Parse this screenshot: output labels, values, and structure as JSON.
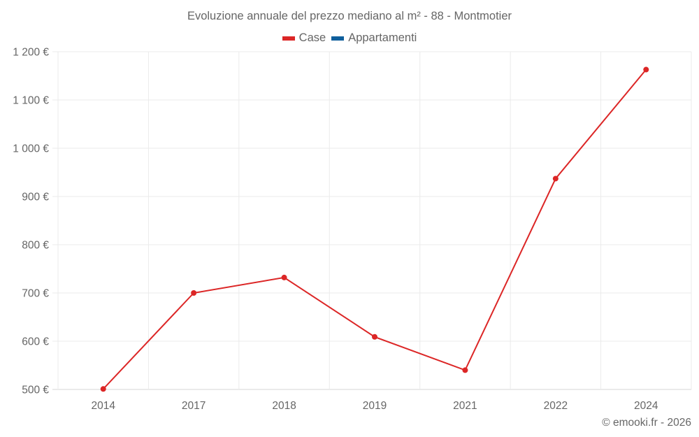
{
  "title": "Evoluzione annuale del prezzo mediano al m² - 88 - Montmotier",
  "legend": [
    {
      "label": "Case",
      "color": "#dc2626"
    },
    {
      "label": "Appartamenti",
      "color": "#0f5f9c"
    }
  ],
  "credit": "© emooki.fr - 2026",
  "chart_data": {
    "type": "line",
    "title": "Evoluzione annuale del prezzo mediano al m² - 88 - Montmotier",
    "xlabel": "",
    "ylabel": "",
    "categories": [
      "2014",
      "2017",
      "2018",
      "2019",
      "2021",
      "2022",
      "2024"
    ],
    "series": [
      {
        "name": "Case",
        "color": "#dc2626",
        "values": [
          501,
          700,
          732,
          609,
          540,
          937,
          1163
        ]
      },
      {
        "name": "Appartamenti",
        "color": "#0f5f9c",
        "values": []
      }
    ],
    "ylim": [
      500,
      1200
    ],
    "yticks": [
      500,
      600,
      700,
      800,
      900,
      1000,
      1100,
      1200
    ],
    "ytick_labels": [
      "500 €",
      "600 €",
      "700 €",
      "800 €",
      "900 €",
      "1 000 €",
      "1 100 €",
      "1 200 €"
    ],
    "grid": true,
    "legend_position": "top"
  }
}
